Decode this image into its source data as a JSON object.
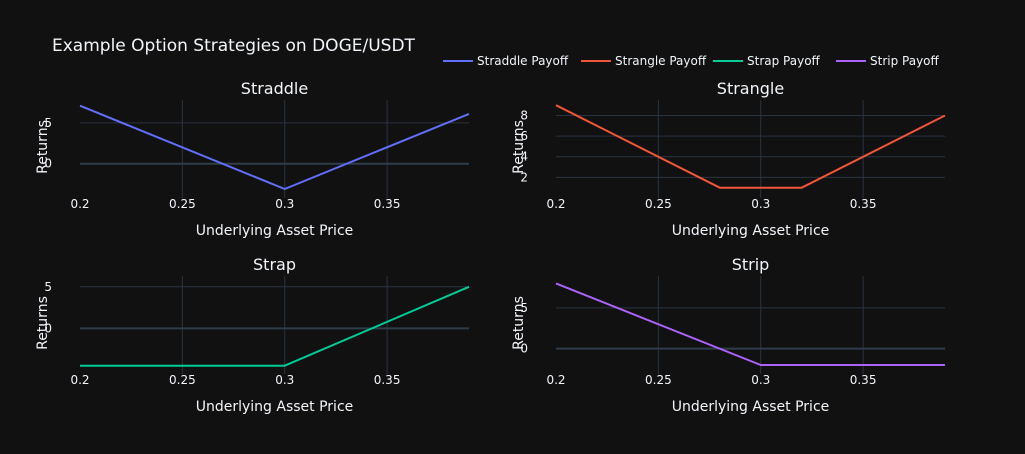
{
  "figure": {
    "title": "Example Option Strategies on DOGE/USDT",
    "background": "#111111",
    "text_color": "#f2f5fa",
    "grid_color": "#283442",
    "zero_line_color": "#2f3d4a"
  },
  "legend": {
    "placement": "top-right",
    "items": [
      {
        "label": "Straddle Payoff",
        "color": "#636efa"
      },
      {
        "label": "Strangle Payoff",
        "color": "#EF553B"
      },
      {
        "label": "Strap Payoff",
        "color": "#00cc96"
      },
      {
        "label": "Strip Payoff",
        "color": "#ab63fa"
      }
    ]
  },
  "chart_data": [
    {
      "type": "line",
      "title": "Straddle",
      "xlabel": "Underlying Asset Price",
      "ylabel": "Returns",
      "xlim": [
        0.2,
        0.39
      ],
      "ylim": [
        -4.2,
        7.8
      ],
      "xticks": [
        0.2,
        0.25,
        0.3,
        0.35
      ],
      "xtick_labels": [
        "0.2",
        "0.25",
        "0.3",
        "0.35"
      ],
      "yticks": [
        0,
        5
      ],
      "ytick_labels": [
        "0",
        "5"
      ],
      "grid": true,
      "series": [
        {
          "name": "Straddle Payoff",
          "color": "#636efa",
          "x": [
            0.2,
            0.3,
            0.39
          ],
          "y": [
            7.1,
            -3.1,
            6.1
          ]
        }
      ]
    },
    {
      "type": "line",
      "title": "Strangle",
      "xlabel": "Underlying Asset Price",
      "ylabel": "Returns",
      "xlim": [
        0.2,
        0.39
      ],
      "ylim": [
        0,
        9.5
      ],
      "xticks": [
        0.2,
        0.25,
        0.3,
        0.35
      ],
      "xtick_labels": [
        "0.2",
        "0.25",
        "0.3",
        "0.35"
      ],
      "yticks": [
        2,
        4,
        6,
        8
      ],
      "ytick_labels": [
        "2",
        "4",
        "6",
        "8"
      ],
      "grid": true,
      "series": [
        {
          "name": "Strangle Payoff",
          "color": "#EF553B",
          "x": [
            0.2,
            0.28,
            0.32,
            0.39
          ],
          "y": [
            9,
            1,
            1,
            8
          ]
        }
      ]
    },
    {
      "type": "line",
      "title": "Strap",
      "xlabel": "Underlying Asset Price",
      "ylabel": "Returns",
      "xlim": [
        0.2,
        0.39
      ],
      "ylim": [
        -5.5,
        6.3
      ],
      "xticks": [
        0.2,
        0.25,
        0.3,
        0.35
      ],
      "xtick_labels": [
        "0.2",
        "0.25",
        "0.3",
        "0.35"
      ],
      "yticks": [
        0,
        5
      ],
      "ytick_labels": [
        "0",
        "5"
      ],
      "grid": true,
      "series": [
        {
          "name": "Strap Payoff",
          "color": "#00cc96",
          "x": [
            0.2,
            0.3,
            0.39
          ],
          "y": [
            -4.5,
            -4.5,
            5.0
          ]
        }
      ]
    },
    {
      "type": "line",
      "title": "Strip",
      "xlabel": "Underlying Asset Price",
      "ylabel": "Returns",
      "xlim": [
        0.2,
        0.39
      ],
      "ylim": [
        -3.1,
        8.9
      ],
      "xticks": [
        0.2,
        0.25,
        0.3,
        0.35
      ],
      "xtick_labels": [
        "0.2",
        "0.25",
        "0.3",
        "0.35"
      ],
      "yticks": [
        0,
        5
      ],
      "ytick_labels": [
        "0",
        "5"
      ],
      "grid": true,
      "series": [
        {
          "name": "Strip Payoff",
          "color": "#ab63fa",
          "x": [
            0.2,
            0.3,
            0.39
          ],
          "y": [
            8.0,
            -2.0,
            -2.0
          ]
        }
      ]
    }
  ]
}
